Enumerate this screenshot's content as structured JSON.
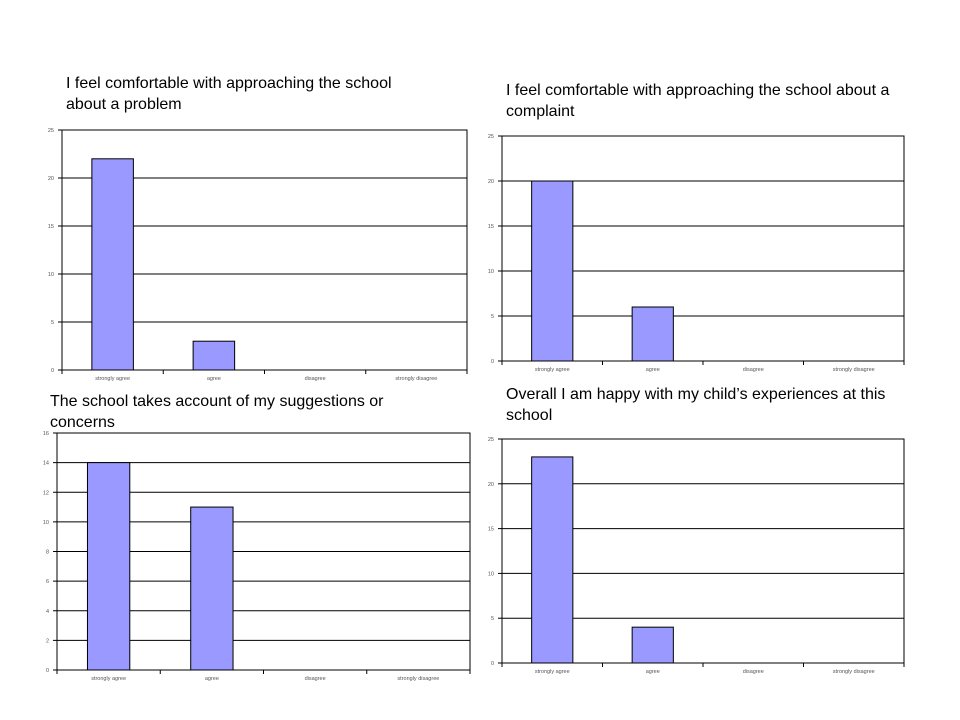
{
  "chart_data": [
    {
      "type": "bar",
      "title": "I feel comfortable with approaching the school about a problem",
      "categories": [
        "strongly agree",
        "agree",
        "disagree",
        "strongly disagree"
      ],
      "values": [
        22,
        3,
        0,
        0
      ],
      "yticks": [
        "0",
        "5",
        "10",
        "15",
        "20",
        "25"
      ],
      "ylim": [
        0,
        25
      ],
      "grid": true,
      "bar_color": "#9999ff"
    },
    {
      "type": "bar",
      "title": "I feel comfortable with approaching the school about a complaint",
      "categories": [
        "strongly agree",
        "agree",
        "disagree",
        "strongly disagree"
      ],
      "values": [
        20,
        6,
        0,
        0
      ],
      "yticks": [
        "0",
        "5",
        "10",
        "15",
        "20",
        "25"
      ],
      "ylim": [
        0,
        25
      ],
      "grid": true,
      "bar_color": "#9999ff"
    },
    {
      "type": "bar",
      "title": "The school takes account of my suggestions or concerns",
      "categories": [
        "strongly agree",
        "agree",
        "disagree",
        "strongly disagree"
      ],
      "values": [
        14,
        11,
        0,
        0
      ],
      "yticks": [
        "0",
        "2",
        "4",
        "6",
        "8",
        "10",
        "12",
        "14",
        "16"
      ],
      "ylim": [
        0,
        16
      ],
      "grid": true,
      "bar_color": "#9999ff"
    },
    {
      "type": "bar",
      "title": "Overall I am happy with my child’s experiences at this school",
      "categories": [
        "strongly agree",
        "agree",
        "disagree",
        "strongly disagree"
      ],
      "values": [
        23,
        4,
        0,
        0
      ],
      "yticks": [
        "0",
        "5",
        "10",
        "15",
        "20",
        "25"
      ],
      "ylim": [
        0,
        25
      ],
      "grid": true,
      "bar_color": "#9999ff"
    }
  ]
}
